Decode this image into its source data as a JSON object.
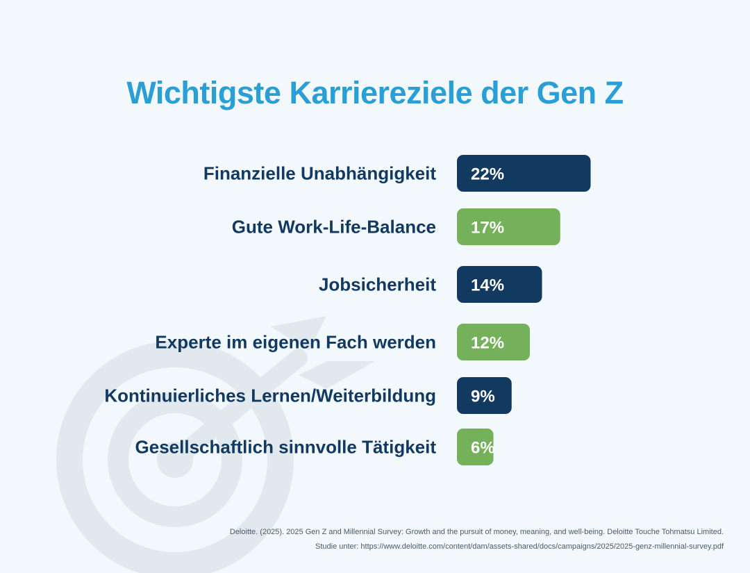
{
  "title": "Wichtigste Karriereziele der Gen Z",
  "colors": {
    "background": "#f2f8fc",
    "title": "#2a9fd6",
    "navy": "#123a61",
    "green": "#75b05b",
    "label": "#123a61",
    "watermark": "#e2e9ee"
  },
  "watermark_icon": "target-arrow-icon",
  "chart_data": {
    "type": "bar",
    "orientation": "horizontal",
    "title": "Wichtigste Karriereziele der Gen Z",
    "categories": [
      "Finanzielle Unabhängigkeit",
      "Gute Work-Life-Balance",
      "Jobsicherheit",
      "Experte im eigenen Fach werden",
      "Kontinuierliches Lernen/Weiterbildung",
      "Gesellschaftlich sinnvolle Tätigkeit"
    ],
    "values": [
      22,
      17,
      14,
      12,
      9,
      6
    ],
    "value_labels": [
      "22%",
      "17%",
      "14%",
      "12%",
      "9%",
      "6%"
    ],
    "bar_colors": [
      "#123a61",
      "#75b05b",
      "#123a61",
      "#75b05b",
      "#123a61",
      "#75b05b"
    ],
    "xlabel": "",
    "ylabel": "",
    "grid": false
  },
  "source": {
    "line1": "Deloitte. (2025). 2025 Gen Z and Millennial Survey: Growth and the pursuit of money, meaning, and well-being. Deloitte Touche Tohmatsu Limited.",
    "line2": "Studie unter: https://www.deloitte.com/content/dam/assets-shared/docs/campaigns/2025/2025-genz-millennial-survey.pdf"
  }
}
